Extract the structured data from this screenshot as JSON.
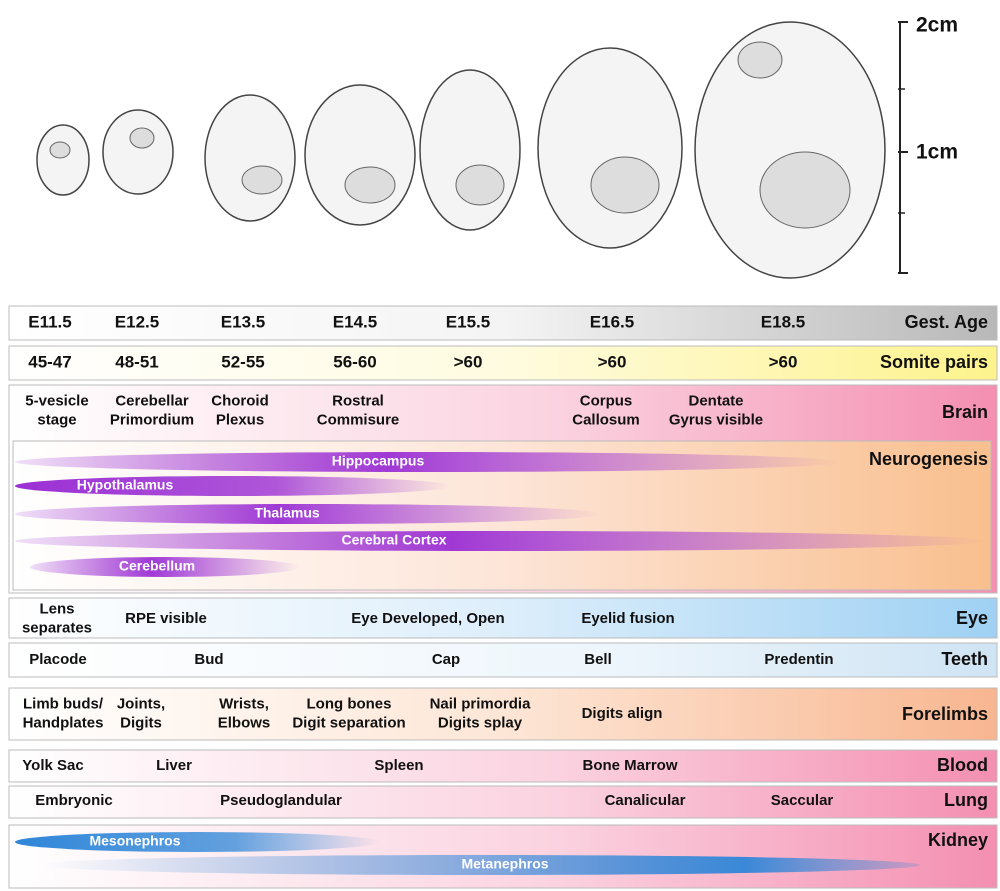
{
  "scale": {
    "labels": [
      "2cm",
      "1cm"
    ]
  },
  "rows": [
    {
      "title": "Gest. Age",
      "items": [
        [
          "E11.5"
        ],
        [
          "E12.5"
        ],
        [
          "E13.5"
        ],
        [
          "E14.5"
        ],
        [
          "E15.5"
        ],
        [
          "E16.5"
        ],
        [
          "E18.5"
        ]
      ]
    },
    {
      "title": "Somite pairs",
      "items": [
        [
          "45-47"
        ],
        [
          "48-51"
        ],
        [
          "52-55"
        ],
        [
          "56-60"
        ],
        [
          ">60"
        ],
        [
          ">60"
        ],
        [
          ">60"
        ]
      ]
    },
    {
      "title": "Brain",
      "items": [
        [
          "5-vesicle",
          "stage"
        ],
        [
          "Cerebellar",
          "Primordium"
        ],
        [
          "Choroid",
          "Plexus"
        ],
        [
          "Rostral",
          "Commisure"
        ],
        [
          "Corpus",
          "Callosum"
        ],
        [
          "Dentate",
          "Gyrus visible"
        ]
      ]
    },
    {
      "title": "Neurogenesis",
      "bands": [
        "Hippocampus",
        "Hypothalamus",
        "Thalamus",
        "Cerebral Cortex",
        "Cerebellum"
      ]
    },
    {
      "title": "Eye",
      "items": [
        [
          "Lens",
          "separates"
        ],
        [
          "RPE visible"
        ],
        [
          "Eye Developed, Open"
        ],
        [
          "Eyelid fusion"
        ]
      ]
    },
    {
      "title": "Teeth",
      "items": [
        [
          "Placode"
        ],
        [
          "Bud"
        ],
        [
          "Cap"
        ],
        [
          "Bell"
        ],
        [
          "Predentin"
        ]
      ]
    },
    {
      "title": "Forelimbs",
      "items": [
        [
          "Limb buds/",
          "Handplates"
        ],
        [
          "Joints,",
          "Digits"
        ],
        [
          "Wrists,",
          "Elbows"
        ],
        [
          "Long bones",
          "Digit separation"
        ],
        [
          "Nail primordia",
          "Digits splay"
        ],
        [
          "Digits align"
        ]
      ]
    },
    {
      "title": "Blood",
      "items": [
        [
          "Yolk Sac"
        ],
        [
          "Liver"
        ],
        [
          "Spleen"
        ],
        [
          "Bone Marrow"
        ]
      ]
    },
    {
      "title": "Lung",
      "items": [
        [
          "Embryonic"
        ],
        [
          "Pseudoglandular"
        ],
        [
          "Canalicular"
        ],
        [
          "Saccular"
        ]
      ]
    },
    {
      "title": "Kidney",
      "bands": [
        "Mesonephros",
        "Metanephros"
      ]
    }
  ]
}
